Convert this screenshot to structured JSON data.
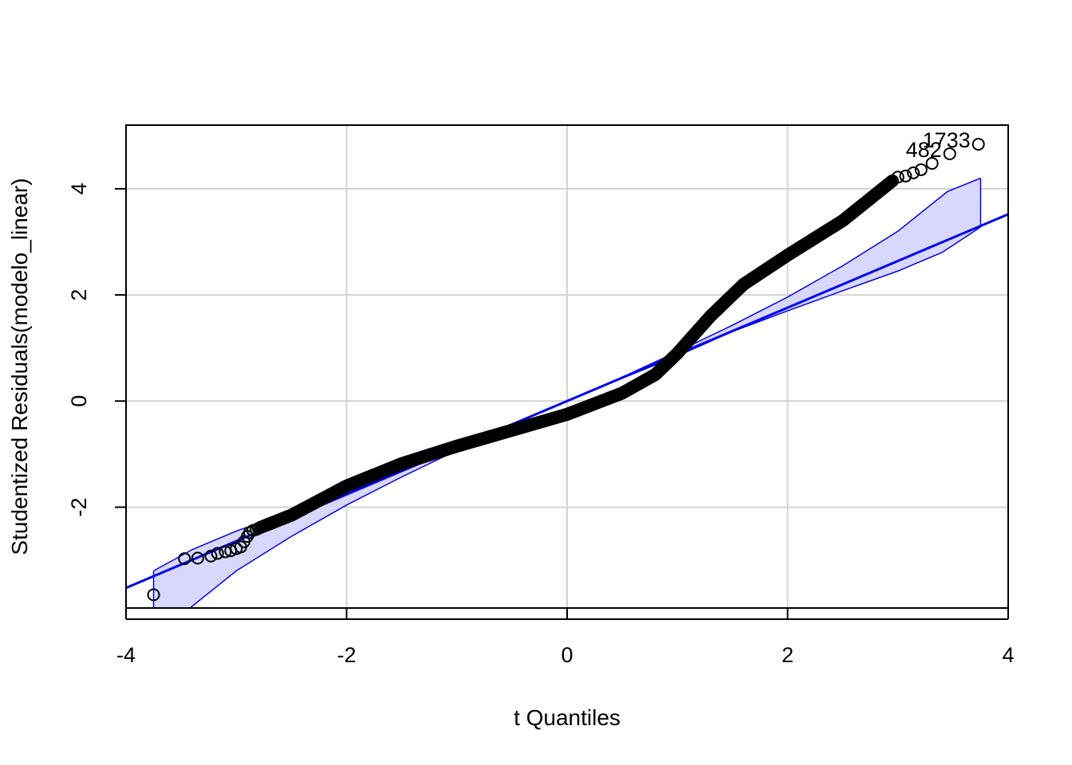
{
  "chart_data": {
    "type": "scatter",
    "subtype": "qq-plot",
    "title": "",
    "xlabel": "t Quantiles",
    "ylabel": "Studentized Residuals(modelo_linear)",
    "xlim": [
      -4.0,
      4.0
    ],
    "ylim": [
      -3.9,
      5.2
    ],
    "xticks": [
      "-4",
      "-2",
      "0",
      "2",
      "4"
    ],
    "yticks": [
      "-2",
      "0",
      "2",
      "4"
    ],
    "grid": true,
    "colors": {
      "points": "#000000",
      "line": "#0000ee",
      "band_fill": "#d8d8ff",
      "band_stroke": "#0000ee",
      "grid": "#d3d3d3"
    },
    "reference_line": {
      "slope": 0.88,
      "intercept": 0.0
    },
    "point_labels": [
      {
        "text": "1733",
        "x": 3.73,
        "y": 4.84
      },
      {
        "text": "482",
        "x": 3.47,
        "y": 4.66
      }
    ],
    "points": [
      [
        -3.75,
        -3.65
      ],
      [
        -3.47,
        -2.97
      ],
      [
        -3.35,
        -2.96
      ],
      [
        -3.23,
        -2.92
      ],
      [
        -3.17,
        -2.87
      ],
      [
        -3.1,
        -2.84
      ],
      [
        -3.05,
        -2.82
      ],
      [
        -3.0,
        -2.78
      ],
      [
        -2.96,
        -2.75
      ],
      [
        -2.93,
        -2.65
      ],
      [
        -2.9,
        -2.55
      ],
      [
        -2.88,
        -2.48
      ],
      [
        -2.85,
        -2.44
      ],
      [
        -2.82,
        -2.42
      ],
      [
        -2.8,
        -2.4
      ],
      [
        3.0,
        4.22
      ],
      [
        3.07,
        4.24
      ],
      [
        3.14,
        4.3
      ],
      [
        3.21,
        4.36
      ],
      [
        3.31,
        4.48
      ],
      [
        3.47,
        4.66
      ],
      [
        3.73,
        4.84
      ]
    ],
    "curve_knots": [
      [
        -2.78,
        -2.38
      ],
      [
        -2.5,
        -2.15
      ],
      [
        -2.0,
        -1.6
      ],
      [
        -1.5,
        -1.18
      ],
      [
        -1.0,
        -0.85
      ],
      [
        -0.5,
        -0.55
      ],
      [
        0.0,
        -0.25
      ],
      [
        0.5,
        0.15
      ],
      [
        0.8,
        0.5
      ],
      [
        1.0,
        0.9
      ],
      [
        1.3,
        1.6
      ],
      [
        1.6,
        2.2
      ],
      [
        2.0,
        2.75
      ],
      [
        2.5,
        3.4
      ],
      [
        2.8,
        3.9
      ],
      [
        2.95,
        4.15
      ]
    ],
    "confidence_band": {
      "upper": [
        [
          -3.75,
          -3.2
        ],
        [
          -3.4,
          -2.8
        ],
        [
          -3.0,
          -2.45
        ],
        [
          -2.5,
          -2.08
        ],
        [
          -2.0,
          -1.7
        ],
        [
          -1.5,
          -1.31
        ],
        [
          -1.0,
          -0.85
        ],
        [
          -0.5,
          -0.43
        ],
        [
          0.0,
          0.0
        ],
        [
          0.5,
          0.45
        ],
        [
          1.0,
          0.93
        ],
        [
          1.5,
          1.43
        ],
        [
          2.0,
          1.96
        ],
        [
          2.5,
          2.55
        ],
        [
          3.0,
          3.2
        ],
        [
          3.45,
          3.95
        ],
        [
          3.75,
          4.2
        ]
      ],
      "lower": [
        [
          -3.75,
          -4.2
        ],
        [
          -3.45,
          -3.95
        ],
        [
          -3.0,
          -3.2
        ],
        [
          -2.5,
          -2.55
        ],
        [
          -2.0,
          -1.96
        ],
        [
          -1.5,
          -1.43
        ],
        [
          -1.0,
          -0.93
        ],
        [
          -0.5,
          -0.45
        ],
        [
          0.0,
          0.0
        ],
        [
          0.5,
          0.43
        ],
        [
          1.0,
          0.85
        ],
        [
          1.5,
          1.31
        ],
        [
          2.0,
          1.7
        ],
        [
          2.5,
          2.08
        ],
        [
          3.0,
          2.45
        ],
        [
          3.4,
          2.8
        ],
        [
          3.75,
          3.28
        ]
      ]
    }
  }
}
